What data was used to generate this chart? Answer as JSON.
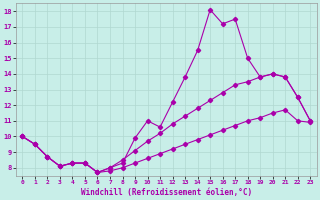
{
  "xlabel": "Windchill (Refroidissement éolien,°C)",
  "background_color": "#c8eee8",
  "grid_color": "#b0d8d0",
  "line_color": "#aa00aa",
  "x": [
    0,
    1,
    2,
    3,
    4,
    5,
    6,
    7,
    8,
    9,
    10,
    11,
    12,
    13,
    14,
    15,
    16,
    17,
    18,
    19,
    20,
    21,
    22,
    23
  ],
  "y_main": [
    10.0,
    9.5,
    8.7,
    8.1,
    8.3,
    8.3,
    7.7,
    8.0,
    8.3,
    9.9,
    11.0,
    10.6,
    12.2,
    13.8,
    15.5,
    18.1,
    17.2,
    17.5,
    15.0,
    13.8,
    14.0,
    13.8,
    12.5,
    11.0
  ],
  "y_low": [
    10.0,
    9.5,
    8.7,
    8.1,
    8.3,
    8.3,
    7.7,
    7.8,
    8.0,
    8.3,
    8.6,
    8.9,
    9.2,
    9.5,
    9.8,
    10.1,
    10.4,
    10.7,
    11.0,
    11.2,
    11.5,
    11.7,
    11.0,
    10.9
  ],
  "y_high": [
    10.0,
    9.5,
    8.7,
    8.1,
    8.3,
    8.3,
    7.7,
    8.0,
    8.5,
    9.1,
    9.7,
    10.2,
    10.8,
    11.3,
    11.8,
    12.3,
    12.8,
    13.3,
    13.5,
    13.8,
    14.0,
    13.8,
    12.5,
    11.0
  ],
  "ylim": [
    7.5,
    18.5
  ],
  "xlim": [
    -0.5,
    23.5
  ],
  "yticks": [
    8,
    9,
    10,
    11,
    12,
    13,
    14,
    15,
    16,
    17,
    18
  ],
  "xticks": [
    0,
    1,
    2,
    3,
    4,
    5,
    6,
    7,
    8,
    9,
    10,
    11,
    12,
    13,
    14,
    15,
    16,
    17,
    18,
    19,
    20,
    21,
    22,
    23
  ]
}
